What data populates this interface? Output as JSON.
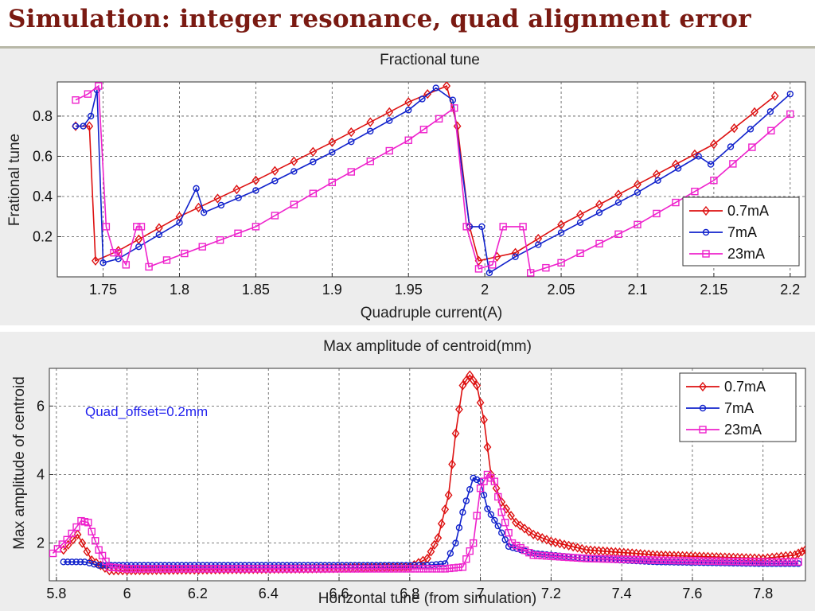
{
  "slide": {
    "title": "Simulation:  integer resonance, quad alignment error"
  },
  "chart_data": [
    {
      "type": "line",
      "title": "Fractional tune",
      "xlabel": "Quadruple current(A)",
      "ylabel": "Frational tune",
      "xlim": [
        1.72,
        2.21
      ],
      "ylim": [
        0,
        0.97
      ],
      "xticks": [
        "1.75",
        "1.8",
        "1.85",
        "1.9",
        "1.95",
        "2",
        "2.05",
        "2.1",
        "2.15",
        "2.2"
      ],
      "yticks": [
        "0.2",
        "0.4",
        "0.6",
        "0.8"
      ],
      "grid": true,
      "legend_position": "bottom-right",
      "series": [
        {
          "name": "0.7mA",
          "color": "#dd1111",
          "marker": "diamond",
          "points": [
            [
              1.732,
              0.75
            ],
            [
              1.741,
              0.75
            ],
            [
              1.745,
              0.08
            ],
            [
              1.76,
              0.13
            ],
            [
              1.8,
              0.3
            ],
            [
              1.85,
              0.48
            ],
            [
              1.9,
              0.67
            ],
            [
              1.95,
              0.87
            ],
            [
              1.975,
              0.95
            ],
            [
              1.982,
              0.75
            ],
            [
              1.99,
              0.25
            ],
            [
              1.996,
              0.08
            ],
            [
              2.02,
              0.12
            ],
            [
              2.05,
              0.26
            ],
            [
              2.1,
              0.46
            ],
            [
              2.15,
              0.66
            ],
            [
              2.19,
              0.9
            ]
          ]
        },
        {
          "name": "7mA",
          "color": "#1122cc",
          "marker": "circle",
          "points": [
            [
              1.732,
              0.75
            ],
            [
              1.737,
              0.75
            ],
            [
              1.742,
              0.8
            ],
            [
              1.746,
              0.93
            ],
            [
              1.75,
              0.07
            ],
            [
              1.76,
              0.09
            ],
            [
              1.8,
              0.27
            ],
            [
              1.811,
              0.44
            ],
            [
              1.816,
              0.32
            ],
            [
              1.85,
              0.43
            ],
            [
              1.9,
              0.62
            ],
            [
              1.95,
              0.83
            ],
            [
              1.968,
              0.94
            ],
            [
              1.979,
              0.88
            ],
            [
              1.99,
              0.25
            ],
            [
              1.998,
              0.25
            ],
            [
              2.003,
              0.02
            ],
            [
              2.02,
              0.1
            ],
            [
              2.05,
              0.22
            ],
            [
              2.1,
              0.42
            ],
            [
              2.14,
              0.6
            ],
            [
              2.148,
              0.56
            ],
            [
              2.2,
              0.91
            ]
          ]
        },
        {
          "name": "23mA",
          "color": "#ee22cc",
          "marker": "square",
          "points": [
            [
              1.732,
              0.88
            ],
            [
              1.74,
              0.91
            ],
            [
              1.747,
              0.95
            ],
            [
              1.752,
              0.25
            ],
            [
              1.757,
              0.12
            ],
            [
              1.76,
              0.12
            ],
            [
              1.765,
              0.06
            ],
            [
              1.772,
              0.25
            ],
            [
              1.775,
              0.25
            ],
            [
              1.78,
              0.05
            ],
            [
              1.85,
              0.25
            ],
            [
              1.9,
              0.47
            ],
            [
              1.95,
              0.68
            ],
            [
              1.98,
              0.84
            ],
            [
              1.988,
              0.25
            ],
            [
              1.996,
              0.04
            ],
            [
              2.005,
              0.06
            ],
            [
              2.012,
              0.25
            ],
            [
              2.025,
              0.25
            ],
            [
              2.03,
              0.02
            ],
            [
              2.05,
              0.07
            ],
            [
              2.1,
              0.26
            ],
            [
              2.15,
              0.48
            ],
            [
              2.2,
              0.81
            ]
          ]
        }
      ]
    },
    {
      "type": "line",
      "title": "Max amplitude of centroid(mm)",
      "xlabel": "Horizontal tune (from simulation)",
      "ylabel": "Max amplitude of centroid",
      "xlim": [
        5.78,
        7.92
      ],
      "ylim": [
        0.9,
        7.1
      ],
      "xticks": [
        "5.8",
        "6",
        "6.2",
        "6.4",
        "6.6",
        "6.8",
        "7",
        "7.2",
        "7.4",
        "7.6",
        "7.8"
      ],
      "yticks": [
        "2",
        "4",
        "6"
      ],
      "grid": true,
      "legend_position": "top-right",
      "annotation": "Quad_offset=0.2mm",
      "series": [
        {
          "name": "0.7mA",
          "color": "#dd1111",
          "marker": "diamond",
          "points": [
            [
              5.82,
              1.8
            ],
            [
              5.86,
              2.25
            ],
            [
              5.9,
              1.5
            ],
            [
              5.95,
              1.2
            ],
            [
              6.0,
              1.2
            ],
            [
              6.5,
              1.25
            ],
            [
              6.8,
              1.3
            ],
            [
              6.85,
              1.55
            ],
            [
              6.88,
              2.15
            ],
            [
              6.91,
              3.4
            ],
            [
              6.93,
              5.2
            ],
            [
              6.95,
              6.6
            ],
            [
              6.97,
              6.9
            ],
            [
              6.99,
              6.6
            ],
            [
              7.01,
              5.6
            ],
            [
              7.03,
              4.0
            ],
            [
              7.06,
              3.2
            ],
            [
              7.1,
              2.6
            ],
            [
              7.15,
              2.25
            ],
            [
              7.2,
              2.05
            ],
            [
              7.3,
              1.8
            ],
            [
              7.5,
              1.65
            ],
            [
              7.8,
              1.55
            ],
            [
              7.89,
              1.65
            ],
            [
              7.92,
              1.8
            ]
          ]
        },
        {
          "name": "7mA",
          "color": "#1122cc",
          "marker": "circle",
          "points": [
            [
              5.82,
              1.45
            ],
            [
              5.88,
              1.45
            ],
            [
              5.92,
              1.35
            ],
            [
              6.0,
              1.35
            ],
            [
              6.5,
              1.35
            ],
            [
              6.85,
              1.35
            ],
            [
              6.9,
              1.4
            ],
            [
              6.93,
              2.0
            ],
            [
              6.95,
              2.9
            ],
            [
              6.98,
              3.9
            ],
            [
              7.0,
              3.8
            ],
            [
              7.02,
              3.0
            ],
            [
              7.05,
              2.5
            ],
            [
              7.08,
              1.9
            ],
            [
              7.15,
              1.7
            ],
            [
              7.3,
              1.55
            ],
            [
              7.5,
              1.45
            ],
            [
              7.8,
              1.4
            ],
            [
              7.9,
              1.4
            ]
          ]
        },
        {
          "name": "23mA",
          "color": "#ee22cc",
          "marker": "square",
          "points": [
            [
              5.79,
              1.7
            ],
            [
              5.83,
              2.1
            ],
            [
              5.87,
              2.65
            ],
            [
              5.89,
              2.6
            ],
            [
              5.92,
              1.8
            ],
            [
              5.95,
              1.3
            ],
            [
              6.0,
              1.25
            ],
            [
              6.5,
              1.25
            ],
            [
              6.9,
              1.25
            ],
            [
              6.95,
              1.3
            ],
            [
              6.98,
              2.0
            ],
            [
              7.0,
              3.6
            ],
            [
              7.02,
              4.0
            ],
            [
              7.04,
              3.8
            ],
            [
              7.06,
              2.9
            ],
            [
              7.09,
              2.0
            ],
            [
              7.15,
              1.65
            ],
            [
              7.3,
              1.55
            ],
            [
              7.5,
              1.5
            ],
            [
              7.8,
              1.45
            ],
            [
              7.9,
              1.45
            ]
          ]
        }
      ]
    }
  ]
}
